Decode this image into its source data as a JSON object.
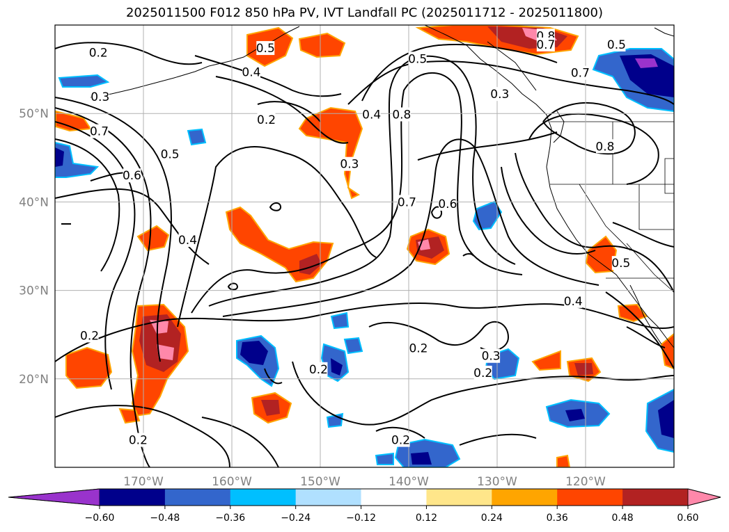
{
  "title": "2025011500 F012 850 hPa PV, IVT Landfall PC (2025011712 - 2025011800)",
  "map": {
    "lon_range": [
      -180,
      -110
    ],
    "lat_range": [
      10,
      60
    ],
    "lon_ticks": [
      {
        "value": -170,
        "label": "170°W"
      },
      {
        "value": -160,
        "label": "160°W"
      },
      {
        "value": -150,
        "label": "150°W"
      },
      {
        "value": -140,
        "label": "140°W"
      },
      {
        "value": -130,
        "label": "130°W"
      },
      {
        "value": -120,
        "label": "120°W"
      }
    ],
    "lat_ticks": [
      {
        "value": 20,
        "label": "20°N"
      },
      {
        "value": 30,
        "label": "30°N"
      },
      {
        "value": 40,
        "label": "40°N"
      },
      {
        "value": 50,
        "label": "50°N"
      }
    ],
    "grid": true
  },
  "colorbar": {
    "colors": [
      "#9933cc",
      "#00008b",
      "#3366cc",
      "#00bfff",
      "#b0e0ff",
      "#ffffff",
      "#ffe68a",
      "#ffa500",
      "#ff4500",
      "#b22222",
      "#ff88aa"
    ],
    "tick_labels": [
      "−0.60",
      "−0.48",
      "−0.36",
      "−0.24",
      "−0.12",
      "0.12",
      "0.24",
      "0.36",
      "0.48",
      "0.60"
    ],
    "extend": "both"
  },
  "contour_labels": [
    {
      "text": "0.2",
      "lon": -175.1,
      "lat": 56.9
    },
    {
      "text": "0.3",
      "lon": -174.9,
      "lat": 51.9
    },
    {
      "text": "0.7",
      "lon": -175.0,
      "lat": 48.0
    },
    {
      "text": "0.6",
      "lon": -171.3,
      "lat": 43.0
    },
    {
      "text": "0.5",
      "lon": -167.0,
      "lat": 45.4
    },
    {
      "text": "0.4",
      "lon": -165.0,
      "lat": 35.7
    },
    {
      "text": "0.4",
      "lon": -157.8,
      "lat": 54.7
    },
    {
      "text": "0.5",
      "lon": -156.2,
      "lat": 57.4
    },
    {
      "text": "0.2",
      "lon": -156.1,
      "lat": 49.3
    },
    {
      "text": "0.3",
      "lon": -146.7,
      "lat": 44.3
    },
    {
      "text": "0.4",
      "lon": -144.2,
      "lat": 49.9
    },
    {
      "text": "0.8",
      "lon": -140.8,
      "lat": 49.9
    },
    {
      "text": "0.5",
      "lon": -139.0,
      "lat": 56.2
    },
    {
      "text": "0.7",
      "lon": -140.2,
      "lat": 40.0
    },
    {
      "text": "0.6",
      "lon": -135.6,
      "lat": 39.8
    },
    {
      "text": "0.8",
      "lon": -124.5,
      "lat": 58.8
    },
    {
      "text": "0.7",
      "lon": -124.5,
      "lat": 57.8
    },
    {
      "text": "0.5",
      "lon": -116.5,
      "lat": 57.8
    },
    {
      "text": "0.7",
      "lon": -120.6,
      "lat": 54.6
    },
    {
      "text": "0.3",
      "lon": -129.7,
      "lat": 52.2
    },
    {
      "text": "0.8",
      "lon": -117.8,
      "lat": 46.3
    },
    {
      "text": "0.5",
      "lon": -116.0,
      "lat": 33.1
    },
    {
      "text": "0.4",
      "lon": -121.4,
      "lat": 28.8
    },
    {
      "text": "0.2",
      "lon": -138.9,
      "lat": 23.5
    },
    {
      "text": "0.3",
      "lon": -130.7,
      "lat": 22.6
    },
    {
      "text": "0.2",
      "lon": -131.6,
      "lat": 20.7
    },
    {
      "text": "0.2",
      "lon": -150.2,
      "lat": 21.1
    },
    {
      "text": "0.2",
      "lon": -176.1,
      "lat": 24.9
    },
    {
      "text": "0.2",
      "lon": -170.6,
      "lat": 13.1
    },
    {
      "text": "0.2",
      "lon": -140.9,
      "lat": 13.1
    }
  ]
}
